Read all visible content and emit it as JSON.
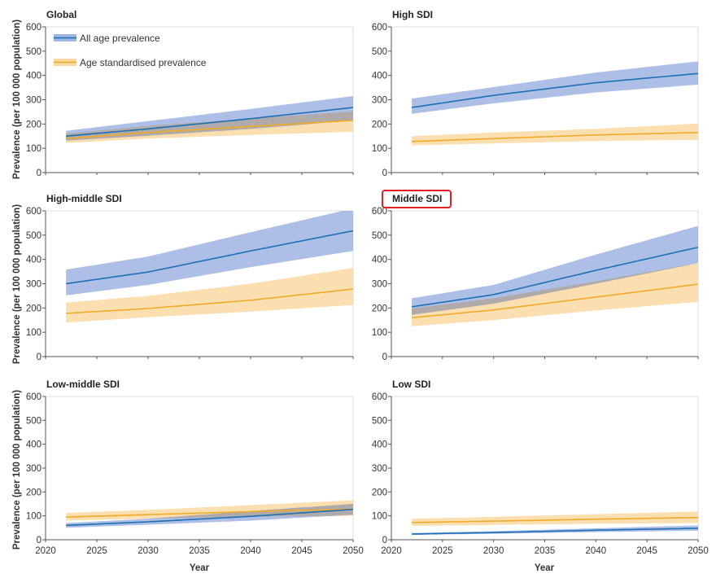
{
  "figure": {
    "ylabel": "Prevalence (per 100 000 population)",
    "xlabel": "Year",
    "legend": {
      "all_age": "All age prevalence",
      "age_std": "Age standardised prevalence"
    },
    "colors": {
      "all_age_line": "#1f6fb4",
      "all_age_band": "#9fb4e3",
      "age_std_line": "#f0aa2a",
      "age_std_band": "#fbd9a2",
      "overlap_band": "#b0a9a4",
      "highlight": "#e02020"
    },
    "highlighted_panel": "Middle SDI"
  },
  "chart_data": [
    {
      "type": "line",
      "title": "Global",
      "x": [
        2022,
        2030,
        2040,
        2050
      ],
      "xlim": [
        2020,
        2050
      ],
      "ylim": [
        0,
        600
      ],
      "xticks": [
        2020,
        2025,
        2030,
        2035,
        2040,
        2045,
        2050
      ],
      "yticks": [
        0,
        100,
        200,
        300,
        400,
        500,
        600
      ],
      "series": [
        {
          "name": "All age prevalence",
          "values": [
            150,
            180,
            222,
            268
          ],
          "lower": [
            132,
            152,
            180,
            215
          ],
          "upper": [
            172,
            212,
            262,
            315
          ]
        },
        {
          "name": "Age standardised prevalence",
          "values": [
            140,
            165,
            190,
            215
          ],
          "lower": [
            122,
            140,
            155,
            168
          ],
          "upper": [
            160,
            192,
            222,
            252
          ]
        }
      ]
    },
    {
      "type": "line",
      "title": "High SDI",
      "x": [
        2022,
        2030,
        2040,
        2050
      ],
      "xlim": [
        2020,
        2050
      ],
      "ylim": [
        0,
        600
      ],
      "xticks": [
        2020,
        2025,
        2030,
        2035,
        2040,
        2045,
        2050
      ],
      "yticks": [
        0,
        100,
        200,
        300,
        400,
        500,
        600
      ],
      "series": [
        {
          "name": "All age prevalence",
          "values": [
            268,
            318,
            370,
            408
          ],
          "lower": [
            242,
            285,
            330,
            362
          ],
          "upper": [
            305,
            352,
            412,
            458
          ]
        },
        {
          "name": "Age standardised prevalence",
          "values": [
            128,
            140,
            155,
            165
          ],
          "lower": [
            112,
            120,
            130,
            135
          ],
          "upper": [
            150,
            165,
            180,
            202
          ]
        }
      ]
    },
    {
      "type": "line",
      "title": "High-middle SDI",
      "x": [
        2022,
        2030,
        2040,
        2050
      ],
      "xlim": [
        2020,
        2050
      ],
      "ylim": [
        0,
        600
      ],
      "xticks": [
        2020,
        2025,
        2030,
        2035,
        2040,
        2045,
        2050
      ],
      "yticks": [
        0,
        100,
        200,
        300,
        400,
        500,
        600
      ],
      "series": [
        {
          "name": "All age prevalence",
          "values": [
            300,
            348,
            435,
            518
          ],
          "lower": [
            252,
            295,
            368,
            435
          ],
          "upper": [
            358,
            412,
            512,
            610
          ]
        },
        {
          "name": "Age standardised prevalence",
          "values": [
            178,
            198,
            232,
            278
          ],
          "lower": [
            140,
            162,
            185,
            212
          ],
          "upper": [
            222,
            250,
            300,
            365
          ]
        }
      ]
    },
    {
      "type": "line",
      "title": "Middle SDI",
      "x": [
        2022,
        2030,
        2040,
        2050
      ],
      "xlim": [
        2020,
        2050
      ],
      "ylim": [
        0,
        600
      ],
      "xticks": [
        2020,
        2025,
        2030,
        2035,
        2040,
        2045,
        2050
      ],
      "yticks": [
        0,
        100,
        200,
        300,
        400,
        500,
        600
      ],
      "series": [
        {
          "name": "All age prevalence",
          "values": [
            205,
            255,
            355,
            450
          ],
          "lower": [
            172,
            218,
            300,
            385
          ],
          "upper": [
            240,
            295,
            420,
            538
          ]
        },
        {
          "name": "Age standardised prevalence",
          "values": [
            160,
            192,
            245,
            298
          ],
          "lower": [
            125,
            150,
            190,
            225
          ],
          "upper": [
            198,
            240,
            310,
            385
          ]
        }
      ]
    },
    {
      "type": "line",
      "title": "Low-middle SDI",
      "x": [
        2022,
        2030,
        2040,
        2050
      ],
      "xlim": [
        2020,
        2050
      ],
      "ylim": [
        0,
        600
      ],
      "xticks": [
        2020,
        2025,
        2030,
        2035,
        2040,
        2045,
        2050
      ],
      "yticks": [
        0,
        100,
        200,
        300,
        400,
        500,
        600
      ],
      "series": [
        {
          "name": "All age prevalence",
          "values": [
            60,
            75,
            98,
            127
          ],
          "lower": [
            50,
            63,
            80,
            105
          ],
          "upper": [
            70,
            88,
            120,
            150
          ]
        },
        {
          "name": "Age standardised prevalence",
          "values": [
            95,
            105,
            118,
            128
          ],
          "lower": [
            80,
            88,
            97,
            100
          ],
          "upper": [
            112,
            125,
            145,
            165
          ]
        }
      ]
    },
    {
      "type": "line",
      "title": "Low SDI",
      "x": [
        2022,
        2030,
        2040,
        2050
      ],
      "xlim": [
        2020,
        2050
      ],
      "ylim": [
        0,
        600
      ],
      "xticks": [
        2020,
        2025,
        2030,
        2035,
        2040,
        2045,
        2050
      ],
      "yticks": [
        0,
        100,
        200,
        300,
        400,
        500,
        600
      ],
      "series": [
        {
          "name": "All age prevalence",
          "values": [
            24,
            30,
            40,
            48
          ],
          "lower": [
            20,
            25,
            32,
            38
          ],
          "upper": [
            28,
            36,
            48,
            60
          ]
        },
        {
          "name": "Age standardised prevalence",
          "values": [
            72,
            78,
            86,
            93
          ],
          "lower": [
            58,
            62,
            67,
            70
          ],
          "upper": [
            88,
            96,
            107,
            118
          ]
        }
      ]
    }
  ]
}
